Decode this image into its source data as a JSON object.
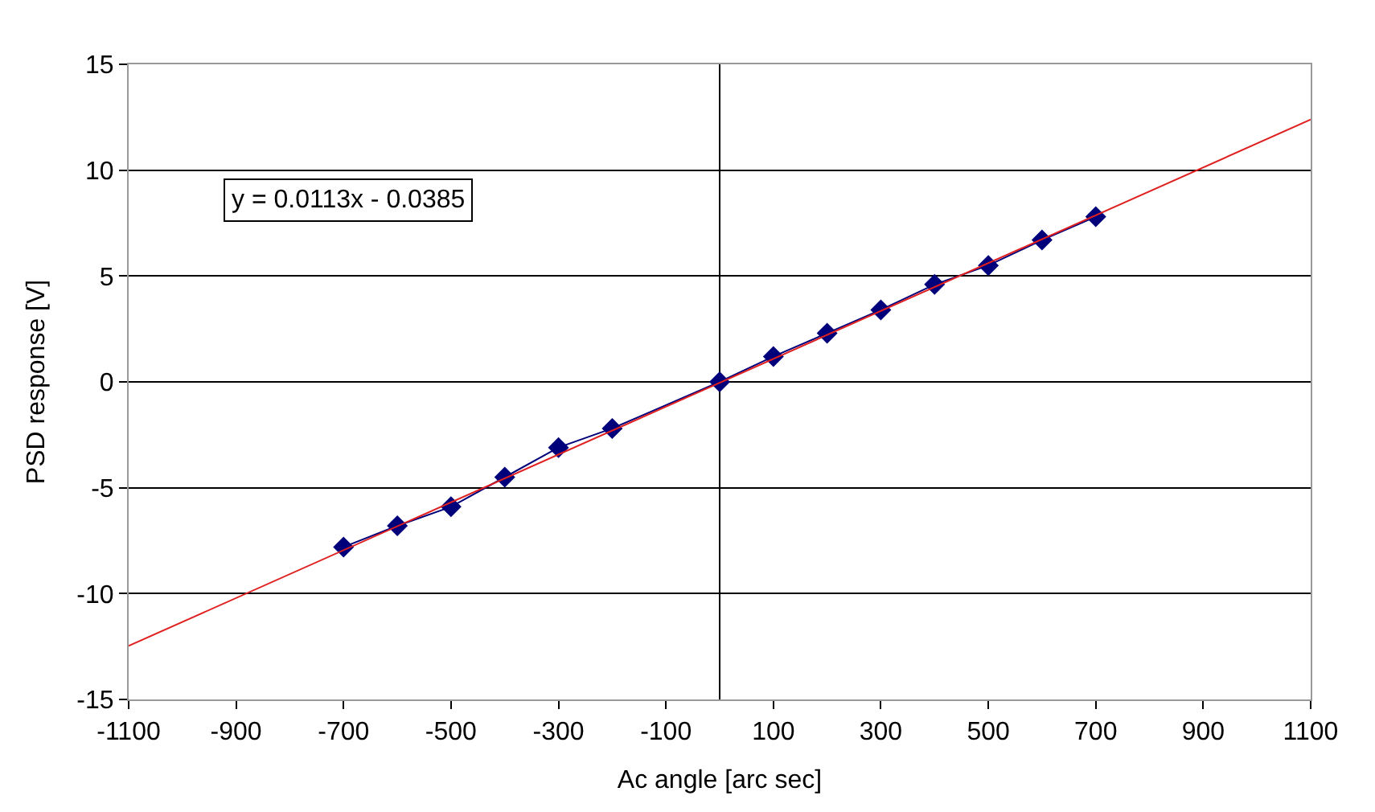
{
  "chart_data": {
    "type": "line",
    "xlabel": "Ac angle [arc sec]",
    "ylabel": "PSD response [V]",
    "xlim": [
      -1100,
      1100
    ],
    "xticks": [
      -1100,
      -900,
      -700,
      -500,
      -300,
      -100,
      100,
      300,
      500,
      700,
      900,
      1100
    ],
    "ylim": [
      -15,
      15
    ],
    "yticks": [
      -15,
      -10,
      -5,
      0,
      5,
      10,
      15
    ],
    "grid": "y",
    "legend": false,
    "series": [
      {
        "color": "#00007a",
        "marker": "diamond",
        "x": [
          -700,
          -600,
          -500,
          -400,
          -300,
          -200,
          0,
          100,
          200,
          300,
          400,
          500,
          600,
          700
        ],
        "values": [
          -7.8,
          -6.8,
          -5.9,
          -4.5,
          -3.1,
          -2.2,
          0,
          1.2,
          2.3,
          3.4,
          4.6,
          5.5,
          6.7,
          7.8
        ]
      },
      {
        "type": "line",
        "color": "#e02020",
        "marker": "none",
        "x": [
          -1100,
          1100
        ],
        "values": [
          -12.47,
          12.39
        ]
      }
    ],
    "annotations": [
      "y = 0.0113x - 0.0385"
    ]
  }
}
